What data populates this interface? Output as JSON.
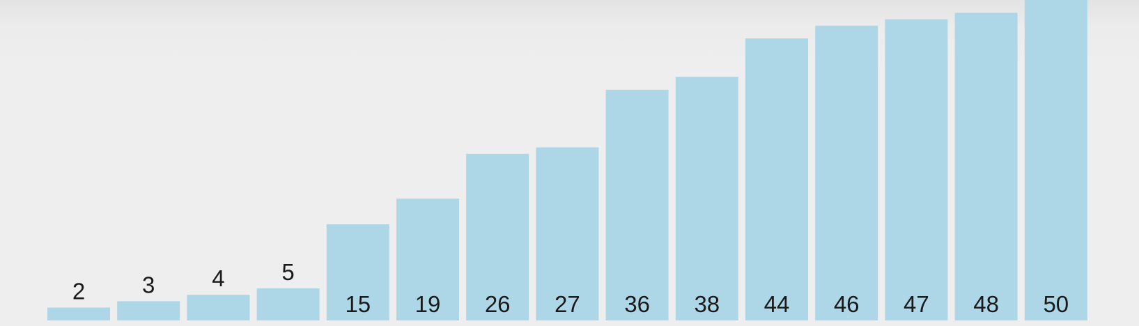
{
  "chart_data": {
    "type": "bar",
    "values": [
      2,
      3,
      4,
      5,
      15,
      19,
      26,
      27,
      36,
      38,
      44,
      46,
      47,
      48,
      50
    ],
    "labels": [
      "2",
      "3",
      "4",
      "5",
      "15",
      "19",
      "26",
      "27",
      "36",
      "38",
      "44",
      "46",
      "47",
      "48",
      "50"
    ],
    "ylim": [
      0,
      50
    ],
    "grid": false,
    "bar_color": "#add6e6",
    "label_color": "#1a1a1a",
    "background_color": "#efeeef"
  }
}
